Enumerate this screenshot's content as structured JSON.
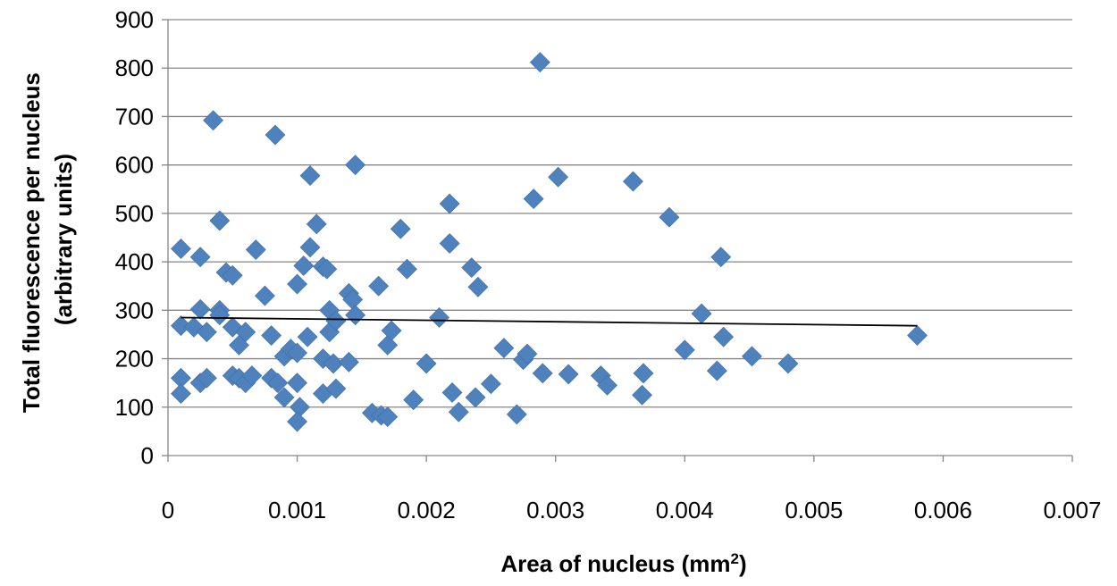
{
  "chart_data": {
    "type": "scatter",
    "xlabel": "Area of nucleus (mm²)",
    "ylabel_lines": [
      "Total fluorescence per nucleus",
      "(arbitrary units)"
    ],
    "xlim": [
      0,
      0.007
    ],
    "ylim": [
      0,
      900
    ],
    "xticks": [
      0,
      0.001,
      0.002,
      0.003,
      0.004,
      0.005,
      0.006,
      0.007
    ],
    "xtick_labels": [
      "0",
      "0.001",
      "0.002",
      "0.003",
      "0.004",
      "0.005",
      "0.006",
      "0.007"
    ],
    "yticks": [
      0,
      100,
      200,
      300,
      400,
      500,
      600,
      700,
      800,
      900
    ],
    "ytick_labels": [
      "0",
      "100",
      "200",
      "300",
      "400",
      "500",
      "600",
      "700",
      "800",
      "900"
    ],
    "horizontal_grid": true,
    "legend": "none",
    "marker": "diamond",
    "marker_color": "#4F81BD",
    "trendline": {
      "type": "linear",
      "x": [
        0.0001,
        0.0058
      ],
      "y": [
        285,
        268
      ],
      "color": "#000000"
    },
    "points": [
      [
        0.0001,
        427
      ],
      [
        0.0001,
        160
      ],
      [
        0.0001,
        128
      ],
      [
        0.0001,
        268
      ],
      [
        0.0002,
        265
      ],
      [
        0.00025,
        410
      ],
      [
        0.00025,
        150
      ],
      [
        0.00025,
        302
      ],
      [
        0.0003,
        255
      ],
      [
        0.0003,
        160
      ],
      [
        0.00035,
        692
      ],
      [
        0.0004,
        485
      ],
      [
        0.0004,
        300
      ],
      [
        0.0004,
        290
      ],
      [
        0.00045,
        378
      ],
      [
        0.0005,
        372
      ],
      [
        0.0005,
        265
      ],
      [
        0.0005,
        165
      ],
      [
        0.00055,
        160
      ],
      [
        0.00055,
        228
      ],
      [
        0.0006,
        150
      ],
      [
        0.0006,
        255
      ],
      [
        0.00065,
        165
      ],
      [
        0.00068,
        425
      ],
      [
        0.00075,
        330
      ],
      [
        0.0008,
        248
      ],
      [
        0.0008,
        160
      ],
      [
        0.00083,
        662
      ],
      [
        0.00085,
        150
      ],
      [
        0.0009,
        120
      ],
      [
        0.0009,
        205
      ],
      [
        0.00095,
        220
      ],
      [
        0.001,
        354
      ],
      [
        0.001,
        150
      ],
      [
        0.001,
        212
      ],
      [
        0.00102,
        100
      ],
      [
        0.001,
        70
      ],
      [
        0.00105,
        392
      ],
      [
        0.00108,
        245
      ],
      [
        0.0011,
        578
      ],
      [
        0.0011,
        430
      ],
      [
        0.00115,
        478
      ],
      [
        0.0012,
        390
      ],
      [
        0.0012,
        128
      ],
      [
        0.0012,
        200
      ],
      [
        0.00123,
        385
      ],
      [
        0.00125,
        300
      ],
      [
        0.00125,
        255
      ],
      [
        0.00128,
        190
      ],
      [
        0.0013,
        138
      ],
      [
        0.0013,
        278
      ],
      [
        0.0014,
        335
      ],
      [
        0.0014,
        193
      ],
      [
        0.00143,
        322
      ],
      [
        0.00145,
        290
      ],
      [
        0.00145,
        600
      ],
      [
        0.00158,
        88
      ],
      [
        0.00163,
        350
      ],
      [
        0.00165,
        83
      ],
      [
        0.0017,
        80
      ],
      [
        0.0017,
        228
      ],
      [
        0.00173,
        258
      ],
      [
        0.0018,
        468
      ],
      [
        0.00185,
        385
      ],
      [
        0.0019,
        115
      ],
      [
        0.002,
        190
      ],
      [
        0.0021,
        285
      ],
      [
        0.00218,
        520
      ],
      [
        0.00218,
        438
      ],
      [
        0.0022,
        130
      ],
      [
        0.00225,
        90
      ],
      [
        0.00235,
        388
      ],
      [
        0.00238,
        120
      ],
      [
        0.0024,
        348
      ],
      [
        0.0025,
        148
      ],
      [
        0.0026,
        222
      ],
      [
        0.0027,
        85
      ],
      [
        0.00275,
        198
      ],
      [
        0.00278,
        210
      ],
      [
        0.00283,
        530
      ],
      [
        0.00288,
        812
      ],
      [
        0.0029,
        170
      ],
      [
        0.00302,
        575
      ],
      [
        0.0031,
        168
      ],
      [
        0.00335,
        165
      ],
      [
        0.0034,
        145
      ],
      [
        0.0036,
        566
      ],
      [
        0.00367,
        125
      ],
      [
        0.00368,
        170
      ],
      [
        0.00388,
        492
      ],
      [
        0.004,
        218
      ],
      [
        0.00413,
        293
      ],
      [
        0.00425,
        175
      ],
      [
        0.00428,
        410
      ],
      [
        0.0043,
        245
      ],
      [
        0.00452,
        205
      ],
      [
        0.0048,
        190
      ],
      [
        0.0058,
        248
      ]
    ]
  }
}
